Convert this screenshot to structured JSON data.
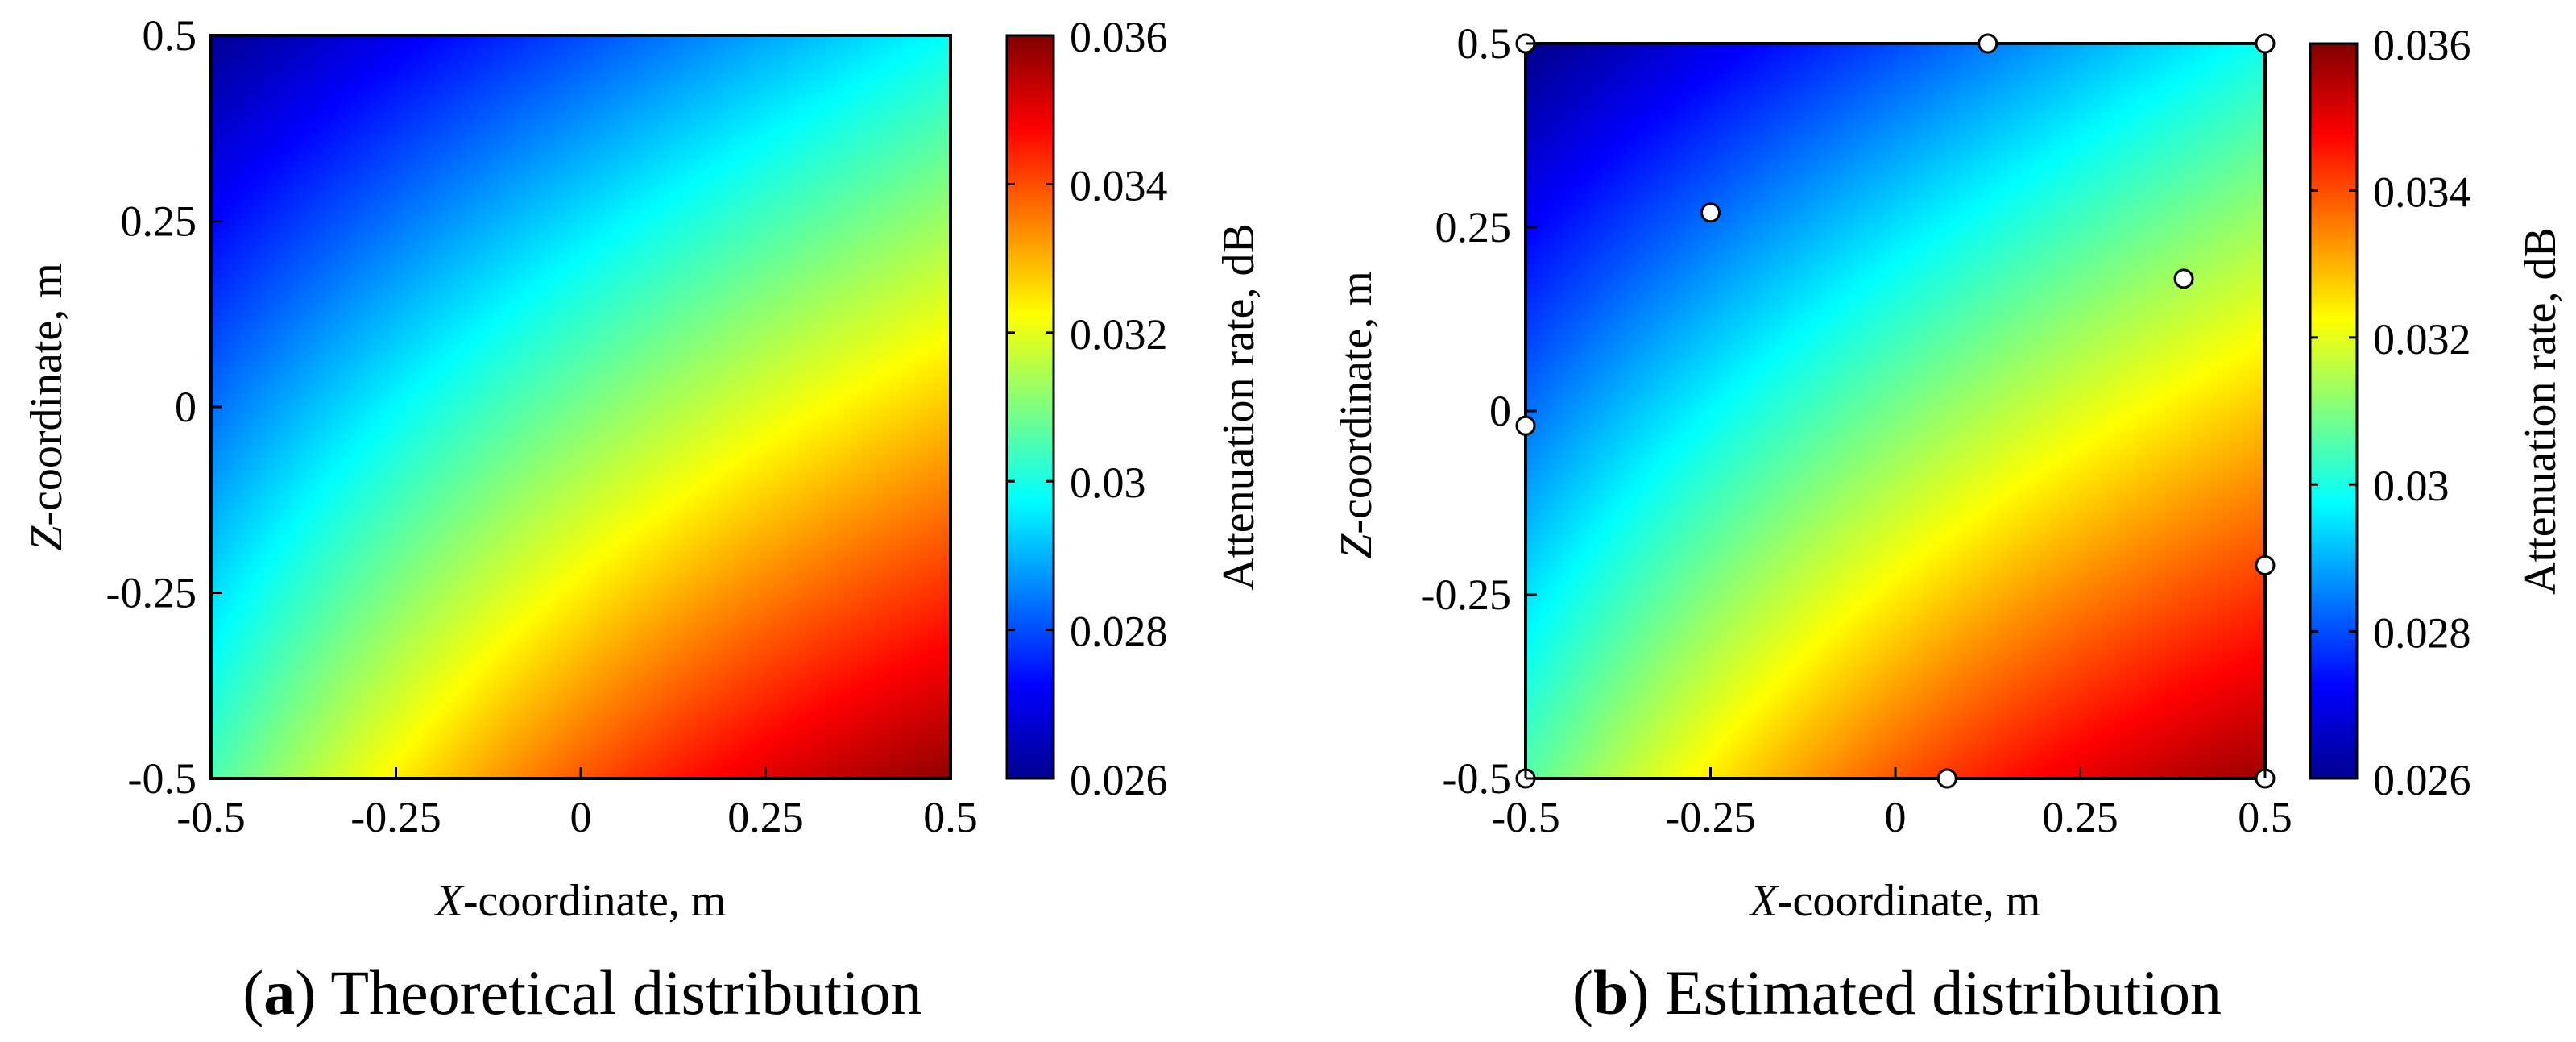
{
  "chart_data": [
    {
      "type": "heatmap",
      "panel": "a",
      "caption_letter": "a",
      "caption_text": "Theoretical distribution",
      "xlabel_italic": "X",
      "xlabel_rest": "-coordinate, m",
      "ylabel_italic": "Z",
      "ylabel_rest": "-coordinate, m",
      "xlim": [
        -0.5,
        0.5
      ],
      "ylim": [
        -0.5,
        0.5
      ],
      "xticks": [
        -0.5,
        -0.25,
        0,
        0.25,
        0.5
      ],
      "yticks": [
        -0.5,
        -0.25,
        0,
        0.25,
        0.5
      ],
      "xtick_labels": [
        "-0.5",
        "-0.25",
        "0",
        "0.25",
        "0.5"
      ],
      "ytick_labels": [
        "-0.5",
        "-0.25",
        "0",
        "0.25",
        "0.5"
      ],
      "colorbar": {
        "label": "Attenuation rate, dB",
        "range": [
          0.026,
          0.036
        ],
        "ticks": [
          0.026,
          0.028,
          0.03,
          0.032,
          0.034,
          0.036
        ],
        "tick_labels": [
          "0.026",
          "0.028",
          "0.03",
          "0.032",
          "0.034",
          "0.036"
        ],
        "colormap": "jet"
      },
      "field": {
        "description": "attenuation increases from top-left (~0.026) to bottom-right (~0.036)",
        "corner_values": {
          "top_left": 0.0262,
          "top_right": 0.0298,
          "bottom_left": 0.0305,
          "bottom_right": 0.0358
        }
      },
      "points": []
    },
    {
      "type": "heatmap",
      "panel": "b",
      "caption_letter": "b",
      "caption_text": "Estimated distribution",
      "xlabel_italic": "X",
      "xlabel_rest": "-coordinate, m",
      "ylabel_italic": "Z",
      "ylabel_rest": "-coordinate, m",
      "xlim": [
        -0.5,
        0.5
      ],
      "ylim": [
        -0.5,
        0.5
      ],
      "xticks": [
        -0.5,
        -0.25,
        0,
        0.25,
        0.5
      ],
      "yticks": [
        -0.5,
        -0.25,
        0,
        0.25,
        0.5
      ],
      "xtick_labels": [
        "-0.5",
        "-0.25",
        "0",
        "0.25",
        "0.5"
      ],
      "ytick_labels": [
        "-0.5",
        "-0.25",
        "0",
        "0.25",
        "0.5"
      ],
      "colorbar": {
        "label": "Attenuation rate, dB",
        "range": [
          0.026,
          0.036
        ],
        "ticks": [
          0.026,
          0.028,
          0.03,
          0.032,
          0.034,
          0.036
        ],
        "tick_labels": [
          "0.026",
          "0.028",
          "0.03",
          "0.032",
          "0.034",
          "0.036"
        ],
        "colormap": "jet"
      },
      "field": {
        "description": "estimated attenuation increases from top-left (~0.026) to bottom-right (~0.036)",
        "corner_values": {
          "top_left": 0.0261,
          "top_right": 0.0299,
          "bottom_left": 0.0306,
          "bottom_right": 0.0357
        }
      },
      "points": [
        {
          "x": -0.5,
          "z": 0.5
        },
        {
          "x": 0.125,
          "z": 0.5
        },
        {
          "x": 0.5,
          "z": 0.5
        },
        {
          "x": -0.25,
          "z": 0.27
        },
        {
          "x": 0.39,
          "z": 0.18
        },
        {
          "x": -0.5,
          "z": -0.02
        },
        {
          "x": 0.5,
          "z": -0.21
        },
        {
          "x": -0.5,
          "z": -0.5
        },
        {
          "x": 0.07,
          "z": -0.5
        },
        {
          "x": 0.5,
          "z": -0.5
        }
      ]
    }
  ]
}
